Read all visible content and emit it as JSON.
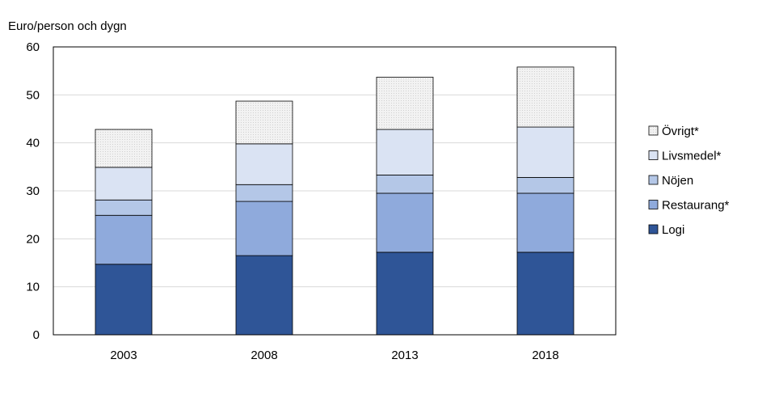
{
  "chart_data": {
    "type": "bar",
    "stacked": true,
    "ylabel": "Euro/person och dygn",
    "xlabel": "",
    "ylim": [
      0,
      60
    ],
    "yticks": [
      0,
      10,
      20,
      30,
      40,
      50,
      60
    ],
    "grid": true,
    "legend_position": "right",
    "categories": [
      "2003",
      "2008",
      "2013",
      "2018"
    ],
    "series": [
      {
        "name": "Logi",
        "color": "#2f5597",
        "values": [
          14.7,
          16.5,
          17.2,
          17.2
        ]
      },
      {
        "name": "Restaurang*",
        "color": "#8faadc",
        "values": [
          10.2,
          11.3,
          12.3,
          12.3
        ]
      },
      {
        "name": "Nöjen",
        "color": "#b4c7e7",
        "values": [
          3.2,
          3.5,
          3.8,
          3.3
        ]
      },
      {
        "name": "Livsmedel*",
        "color": "#dae3f3",
        "values": [
          6.8,
          8.5,
          9.5,
          10.5
        ]
      },
      {
        "name": "Övrigt*",
        "color": "#f2f2f2",
        "values": [
          7.9,
          8.9,
          10.9,
          12.5
        ]
      }
    ]
  }
}
